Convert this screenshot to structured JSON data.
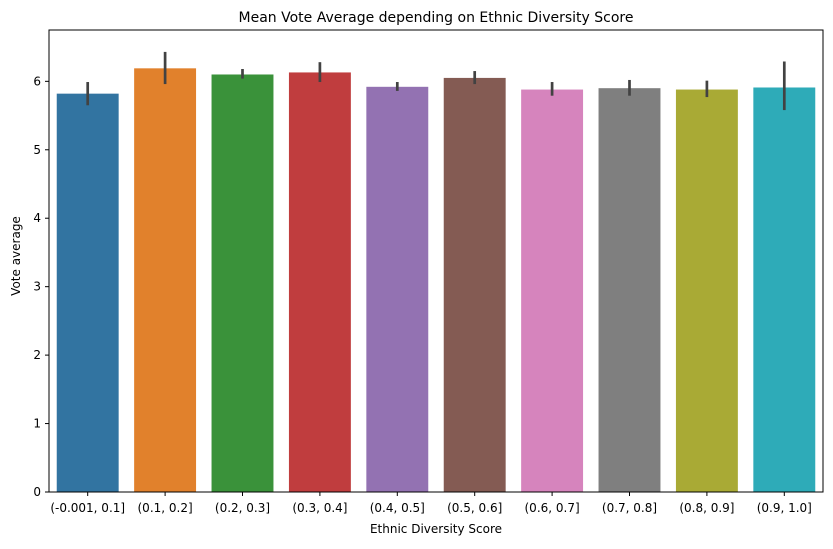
{
  "chart_data": {
    "type": "bar",
    "title": "Mean Vote Average depending on Ethnic Diversity Score",
    "xlabel": "Ethnic Diversity Score",
    "ylabel": "Vote average",
    "ylim": [
      0,
      6.75
    ],
    "yticks": [
      0,
      1,
      2,
      3,
      4,
      5,
      6
    ],
    "grid": false,
    "legend": "none",
    "categories": [
      "(-0.001, 0.1]",
      "(0.1, 0.2]",
      "(0.2, 0.3]",
      "(0.3, 0.4]",
      "(0.4, 0.5]",
      "(0.5, 0.6]",
      "(0.6, 0.7]",
      "(0.7, 0.8]",
      "(0.8, 0.9]",
      "(0.9, 1.0]"
    ],
    "values": [
      5.82,
      6.19,
      6.1,
      6.13,
      5.92,
      6.05,
      5.88,
      5.9,
      5.88,
      5.91
    ],
    "error_low": [
      5.65,
      5.96,
      6.04,
      5.99,
      5.86,
      5.96,
      5.79,
      5.79,
      5.77,
      5.58
    ],
    "error_high": [
      5.99,
      6.43,
      6.18,
      6.28,
      5.99,
      6.15,
      5.99,
      6.02,
      6.01,
      6.29
    ],
    "colors": [
      "#3274a1",
      "#e1812c",
      "#3a923a",
      "#c03d3e",
      "#9372b2",
      "#845b53",
      "#d684bd",
      "#7f7f7f",
      "#a9aa35",
      "#2eabb8"
    ],
    "error_color": "#424242"
  }
}
